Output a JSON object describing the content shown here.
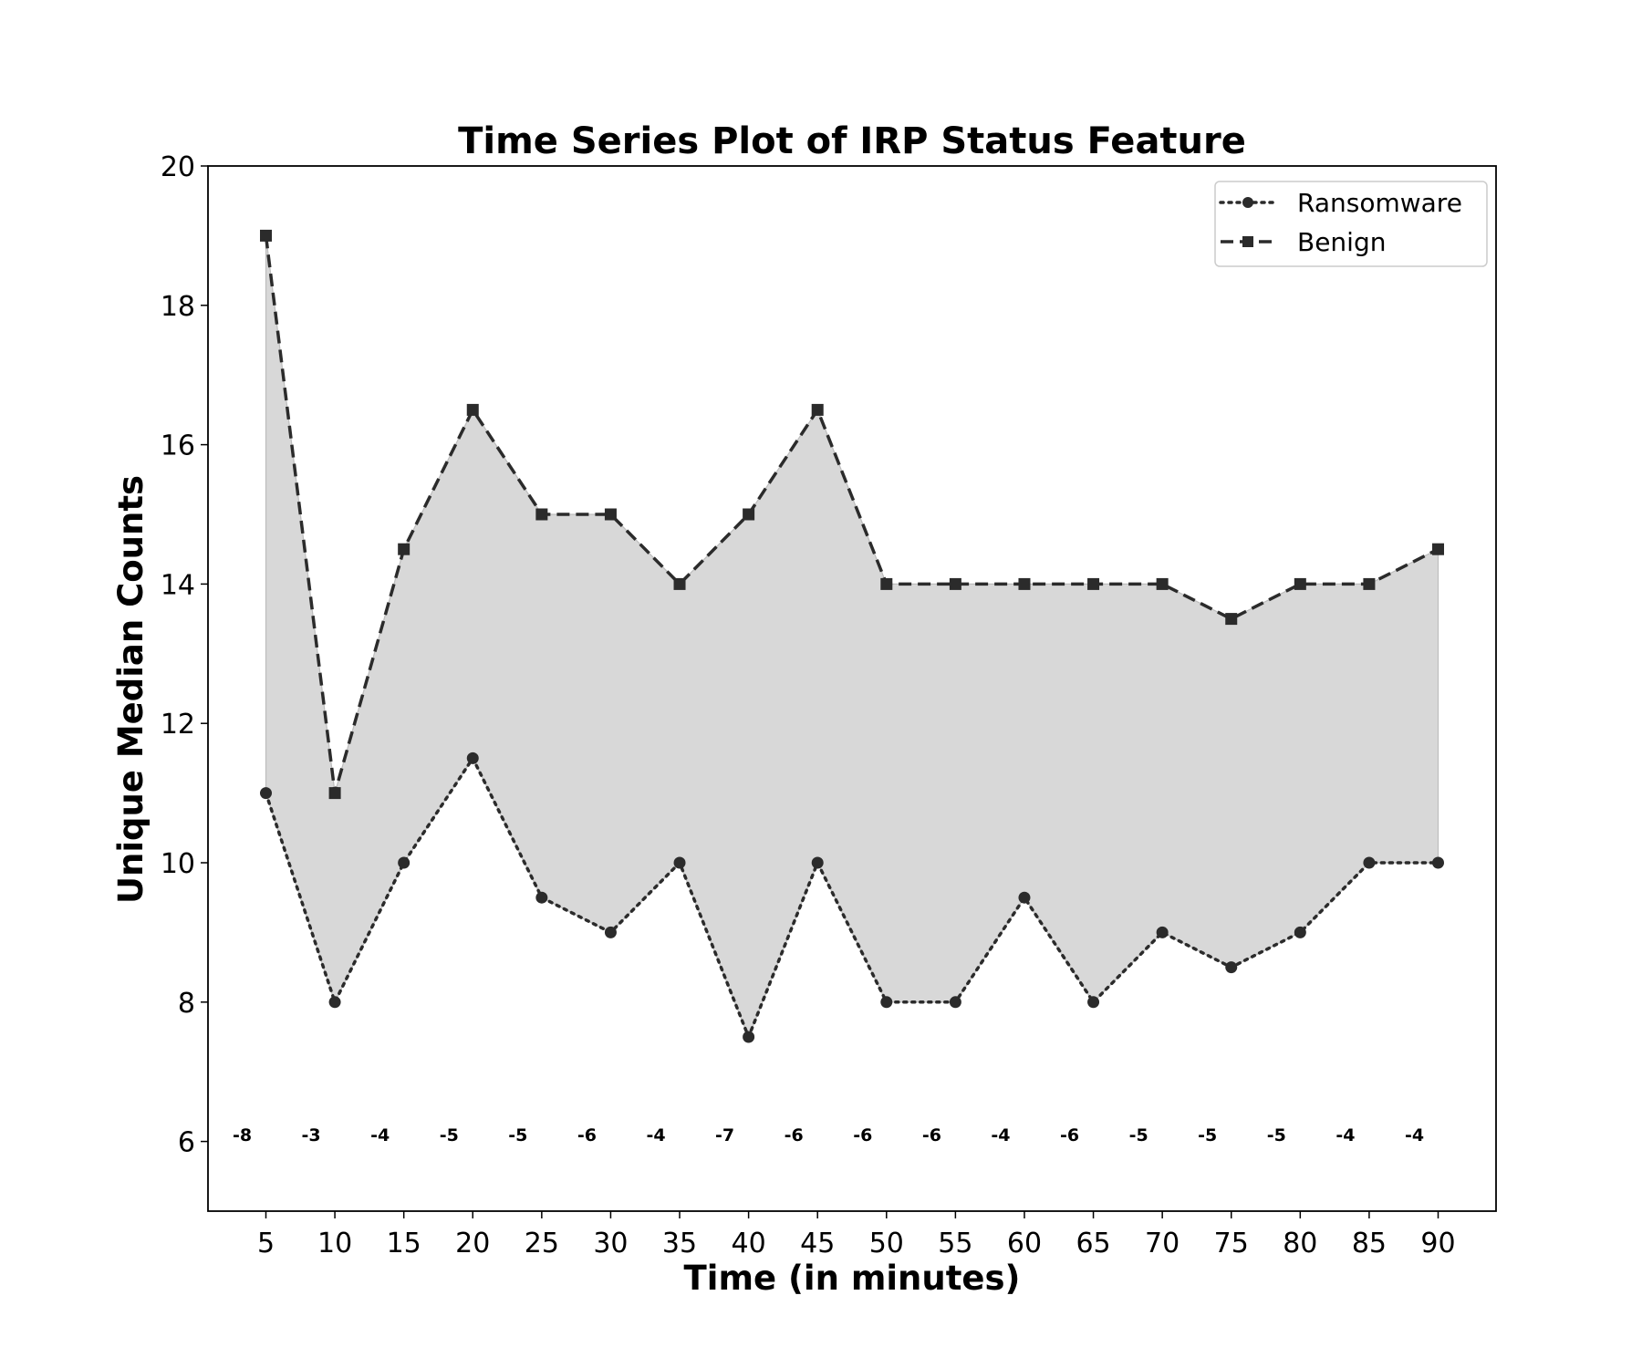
{
  "chart_data": {
    "type": "line",
    "title": "Time Series Plot of IRP Status Feature",
    "xlabel": "Time (in minutes)",
    "ylabel": "Unique Median Counts",
    "x": [
      5,
      10,
      15,
      20,
      25,
      30,
      35,
      40,
      45,
      50,
      55,
      60,
      65,
      70,
      75,
      80,
      85,
      90
    ],
    "xlim": [
      0.8,
      94.2
    ],
    "ylim": [
      5,
      20
    ],
    "yticks": [
      6,
      8,
      10,
      12,
      14,
      16,
      18,
      20
    ],
    "series": [
      {
        "name": "Ransomware",
        "style": "dotted",
        "marker": "circle",
        "values": [
          11,
          8,
          10,
          11.5,
          9.5,
          9,
          10,
          7.5,
          10,
          8,
          8,
          9.5,
          8,
          9,
          8.5,
          9,
          10,
          10
        ]
      },
      {
        "name": "Benign",
        "style": "dashed",
        "marker": "square",
        "values": [
          19,
          11,
          14.5,
          16.5,
          15,
          15,
          14,
          15,
          16.5,
          14,
          14,
          14,
          14,
          14,
          13.5,
          14,
          14,
          14.5
        ]
      }
    ],
    "fill_between": {
      "series": [
        "Ransomware",
        "Benign"
      ],
      "color": "#d8d8d8"
    },
    "annotations": {
      "y": 6.1,
      "labels": [
        "-8",
        "-3",
        "-4",
        "-5",
        "-5",
        "-6",
        "-4",
        "-7",
        "-6",
        "-6",
        "-6",
        "-4",
        "-6",
        "-5",
        "-5",
        "-5",
        "-4",
        "-4"
      ]
    },
    "legend": {
      "placement": "top-right"
    },
    "grid": false,
    "colors": {
      "line": "#2b2b2b",
      "fill": "#d8d8d8",
      "axes": "#000000"
    }
  }
}
